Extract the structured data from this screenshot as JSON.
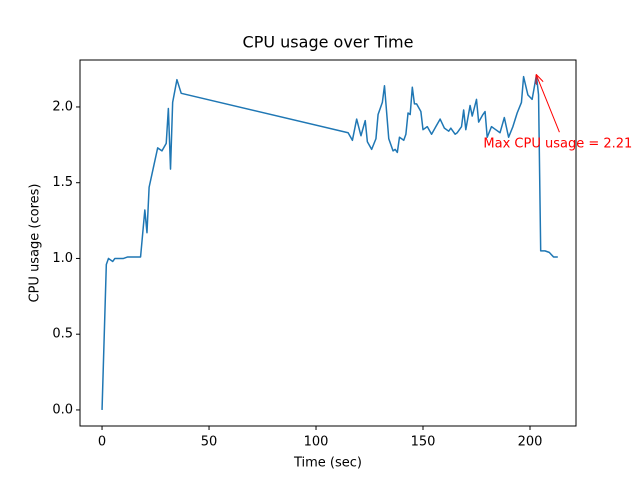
{
  "chart_data": {
    "type": "line",
    "title": "CPU usage over Time",
    "xlabel": "Time (sec)",
    "ylabel": "CPU usage (cores)",
    "x": [
      0,
      2,
      3,
      5,
      6,
      8,
      10,
      12,
      14,
      16,
      18,
      20,
      21,
      22,
      24,
      26,
      28,
      30,
      31,
      32,
      33,
      35,
      37,
      115,
      117,
      119,
      121,
      123,
      124,
      126,
      128,
      129,
      131,
      132,
      134,
      136,
      137,
      138,
      139,
      141,
      142,
      143,
      144,
      145,
      146,
      147,
      149,
      150,
      152,
      154,
      156,
      158,
      160,
      162,
      163,
      165,
      166,
      168,
      169,
      170,
      172,
      173,
      175,
      176,
      178,
      179,
      180,
      182,
      184,
      186,
      188,
      190,
      192,
      194,
      196,
      197,
      199,
      201,
      203,
      204,
      205,
      207,
      209,
      211,
      213
    ],
    "series": [
      {
        "name": "CPU usage",
        "color": "#1f77b4",
        "values": [
          0,
          0.96,
          1.0,
          0.98,
          1.0,
          1.0,
          1.0,
          1.01,
          1.01,
          1.01,
          1.01,
          1.32,
          1.17,
          1.47,
          1.6,
          1.73,
          1.71,
          1.76,
          1.99,
          1.59,
          2.03,
          2.18,
          2.09,
          1.83,
          1.78,
          1.92,
          1.81,
          1.91,
          1.77,
          1.72,
          1.79,
          1.95,
          2.03,
          2.14,
          1.79,
          1.71,
          1.72,
          1.7,
          1.8,
          1.78,
          1.82,
          1.96,
          1.95,
          2.13,
          2.02,
          2.02,
          1.97,
          1.85,
          1.87,
          1.82,
          1.87,
          1.92,
          1.86,
          1.84,
          1.86,
          1.82,
          1.83,
          1.87,
          1.98,
          1.85,
          2.01,
          1.94,
          2.05,
          1.9,
          1.95,
          1.97,
          1.8,
          1.87,
          1.85,
          1.83,
          1.93,
          1.8,
          1.87,
          1.96,
          2.03,
          2.2,
          2.08,
          2.05,
          2.21,
          2.08,
          1.05,
          1.05,
          1.04,
          1.01,
          1.01
        ]
      }
    ],
    "xlim": [
      -10.3,
      221.5
    ],
    "ylim": [
      -0.106,
      2.31
    ],
    "xticks": [
      0,
      50,
      100,
      150,
      200
    ],
    "yticks": [
      {
        "value": 0,
        "label": "0.0"
      },
      0.5,
      {
        "value": 1,
        "label": "1.0"
      },
      1.5,
      {
        "value": 2,
        "label": "2.0"
      }
    ],
    "annotation": {
      "text": "Max CPU usage = 2.21",
      "color": "red",
      "x": 203,
      "y": 2.21
    }
  }
}
